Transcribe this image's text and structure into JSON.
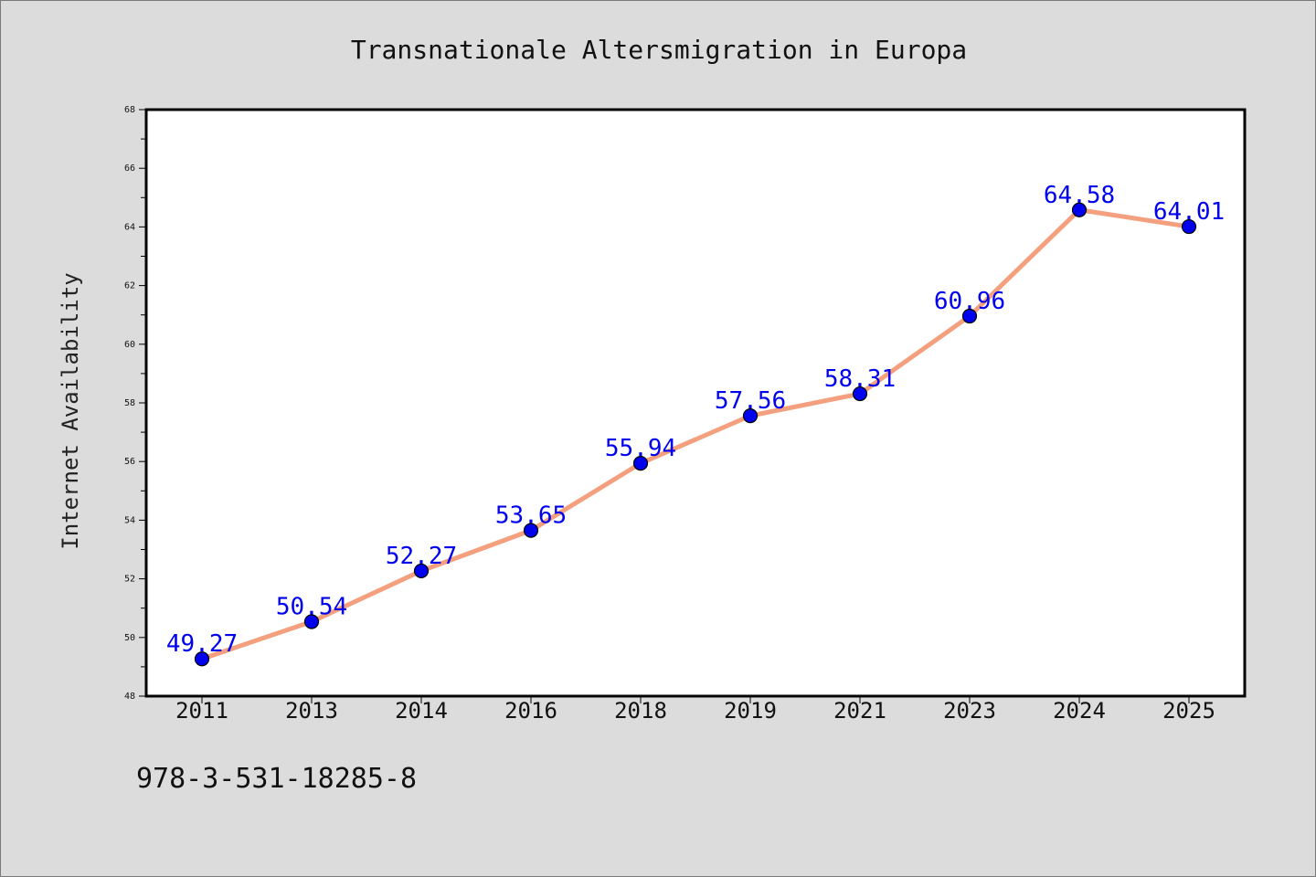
{
  "chart_data": {
    "type": "line",
    "title": "Transnationale Altersmigration in Europa",
    "xlabel": "",
    "ylabel": "Internet Availability",
    "categories": [
      "2011",
      "2013",
      "2014",
      "2016",
      "2018",
      "2019",
      "2021",
      "2023",
      "2024",
      "2025"
    ],
    "series": [
      {
        "values": [
          49.27,
          50.54,
          52.27,
          53.65,
          55.94,
          57.56,
          58.31,
          60.96,
          64.58,
          64.01
        ],
        "labels": [
          "49.27",
          "50.54",
          "52.27",
          "53.65",
          "55.94",
          "57.56",
          "58.31",
          "60.96",
          "64.58",
          "64.01"
        ],
        "line_color": "#f4a07e",
        "marker_color": "#0000ee",
        "label_color": "#0000ee"
      }
    ],
    "ylim": [
      48,
      68
    ],
    "yticks": [
      "48",
      "50",
      "52",
      "54",
      "56",
      "58",
      "60",
      "62",
      "64",
      "66",
      "68"
    ],
    "grid": false,
    "legend": "none"
  },
  "footnote": "978-3-531-18285-8"
}
